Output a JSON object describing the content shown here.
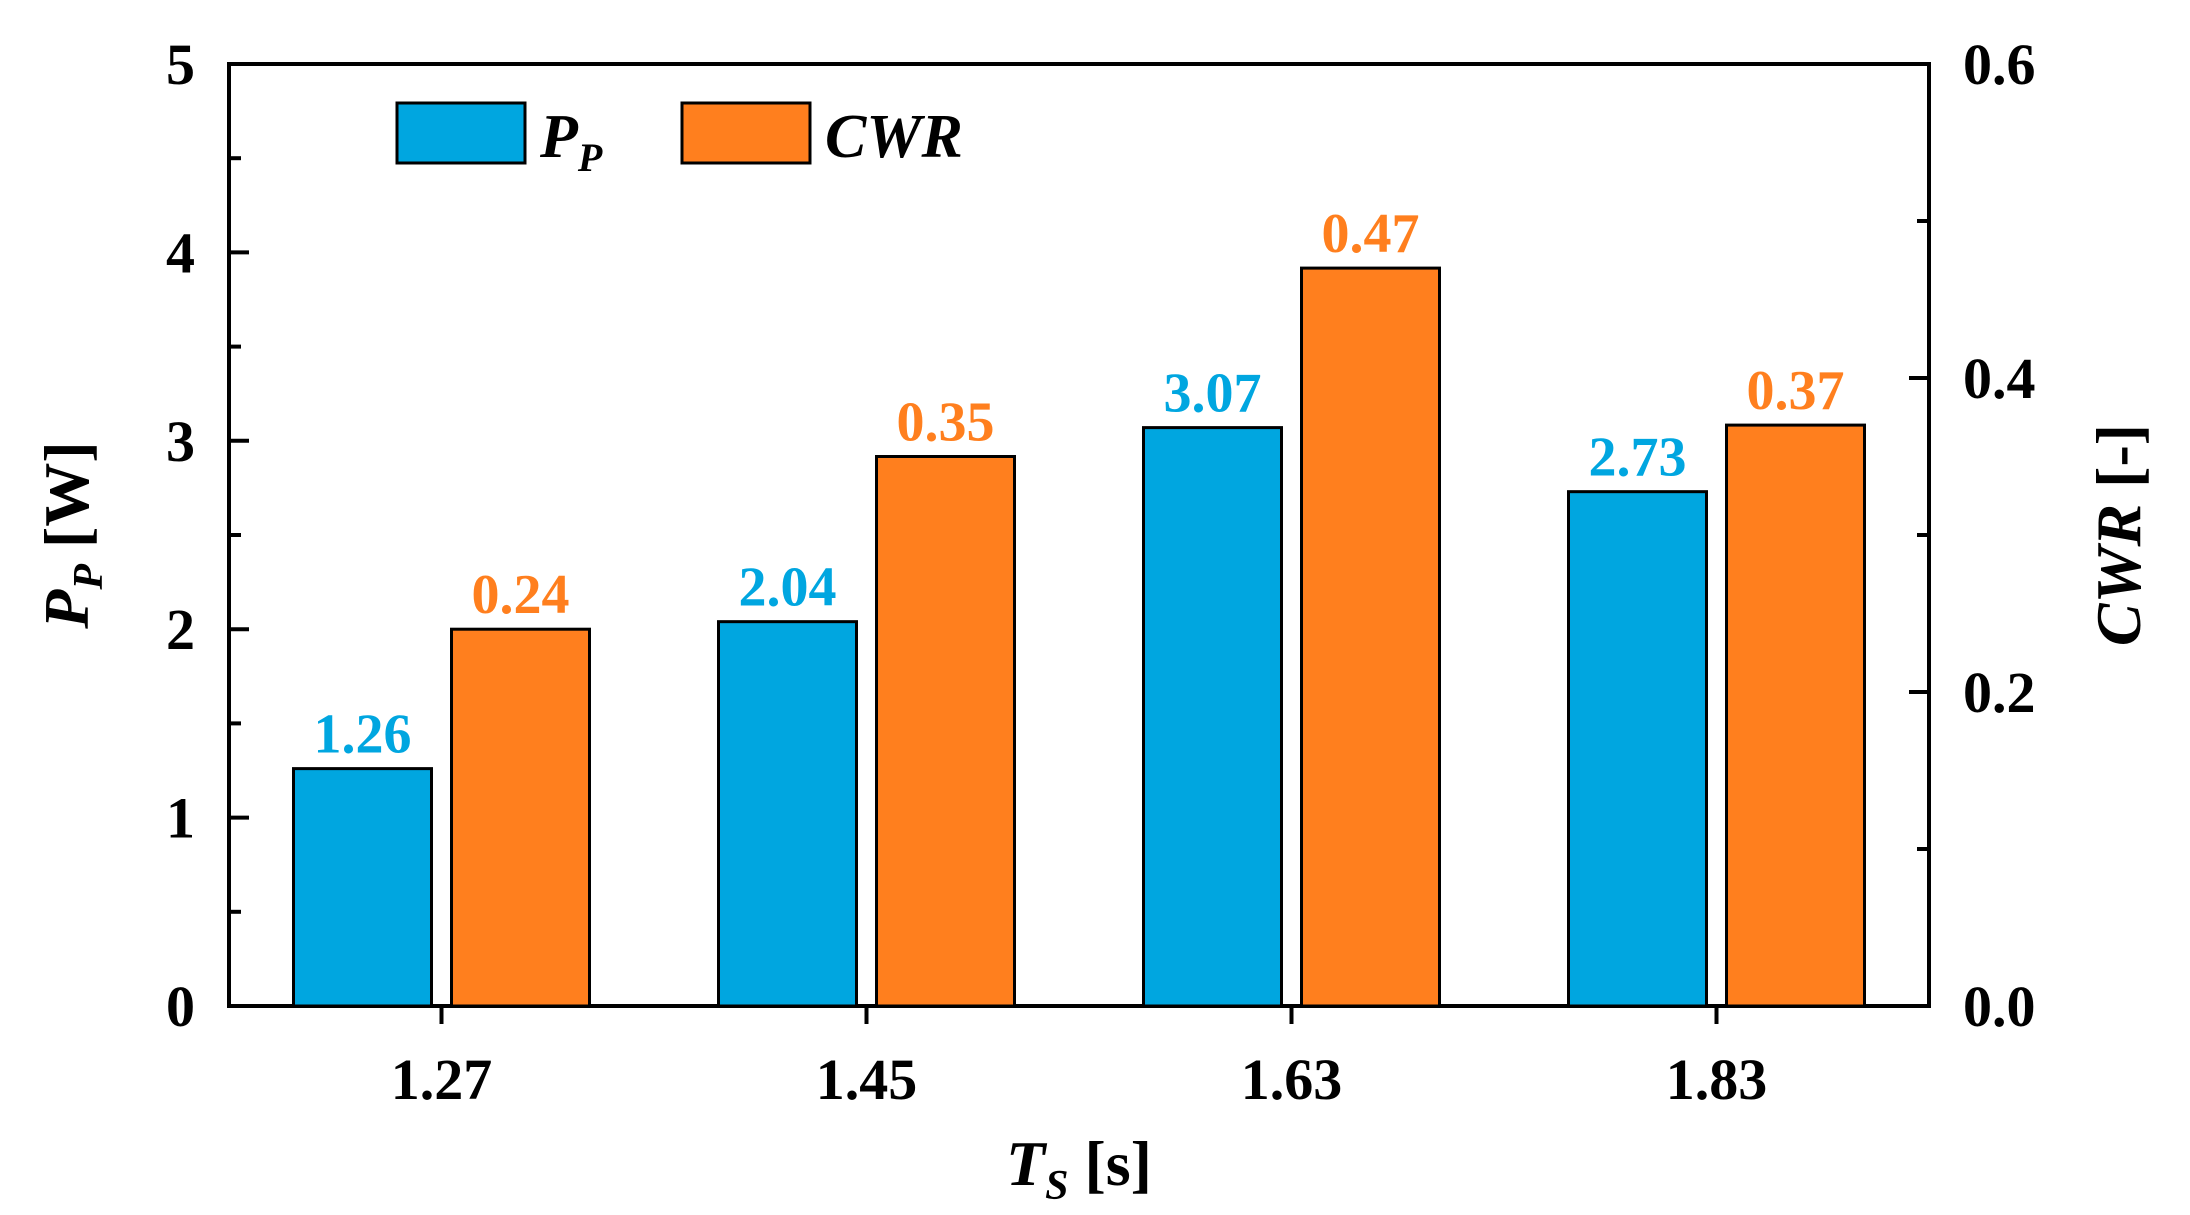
{
  "chart_data": {
    "type": "bar",
    "categories": [
      "1.27",
      "1.45",
      "1.63",
      "1.83"
    ],
    "series": [
      {
        "name": "P_P",
        "legend_main": "P",
        "legend_sub": "P",
        "axis": "left",
        "color": "#00A6E0",
        "values": [
          1.26,
          2.04,
          3.07,
          2.73
        ],
        "labels": [
          "1.26",
          "2.04",
          "3.07",
          "2.73"
        ]
      },
      {
        "name": "CWR",
        "legend_main": "CWR",
        "legend_sub": "",
        "axis": "right",
        "color": "#FF7F1E",
        "values": [
          0.24,
          0.35,
          0.47,
          0.37
        ],
        "labels": [
          "0.24",
          "0.35",
          "0.47",
          "0.37"
        ]
      }
    ],
    "xlabel": {
      "main": "T",
      "sub": "S",
      "unit": " [s]"
    },
    "ylabel_left": {
      "main": "P",
      "sub": "P",
      "unit": " [W]"
    },
    "ylabel_right": {
      "main": "CWR",
      "unit": " [-]"
    },
    "ylim_left": [
      0,
      5
    ],
    "ylim_right": [
      0,
      0.6
    ],
    "yticks_left": [
      "0",
      "1",
      "2",
      "3",
      "4",
      "5"
    ],
    "yticks_right": [
      "0.0",
      "0.2",
      "0.4",
      "0.6"
    ],
    "grid": false,
    "legend_position": "top-left"
  }
}
